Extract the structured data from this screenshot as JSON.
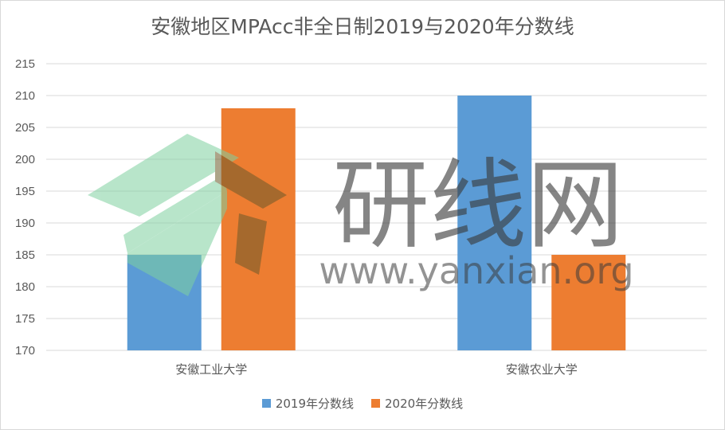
{
  "chart_data": {
    "type": "bar",
    "title": "安徽地区MPAcc非全日制2019与2020年分数线",
    "categories": [
      "安徽工业大学",
      "安徽农业大学"
    ],
    "series": [
      {
        "name": "2019年分数线",
        "values": [
          185,
          210
        ],
        "color": "#5b9bd5"
      },
      {
        "name": "2020年分数线",
        "values": [
          208,
          185
        ],
        "color": "#ed7d31"
      }
    ],
    "ylim": [
      170,
      215
    ],
    "yticks": [
      170,
      175,
      180,
      185,
      190,
      195,
      200,
      205,
      210,
      215
    ],
    "grid": true,
    "legend_position": "bottom"
  },
  "watermark": {
    "text": "研线网",
    "url": "www.yanxian.org"
  }
}
